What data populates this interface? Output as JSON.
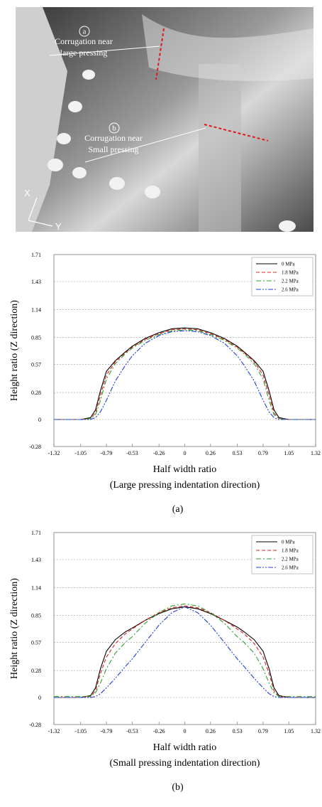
{
  "photo": {
    "labels": [
      {
        "mark": "a",
        "lines": [
          "Corrugation near",
          "large pressing"
        ]
      },
      {
        "mark": "b",
        "lines": [
          "Corrugation near",
          "Small pressing"
        ]
      }
    ],
    "axes": [
      "X",
      "Y"
    ]
  },
  "chart_data": [
    {
      "type": "line",
      "y_label": "Height ratio (Z direction)",
      "x_label": "Half width ratio",
      "note": "(Large pressing indentation direction)",
      "caption": "(a)",
      "xlim": [
        -1.32,
        1.32
      ],
      "xticks": [
        -1.32,
        -1.05,
        -0.79,
        -0.53,
        -0.26,
        0,
        0.26,
        0.53,
        0.79,
        1.05,
        1.32
      ],
      "ylim": [
        -0.28,
        1.71
      ],
      "yticks": [
        -0.28,
        0,
        0.28,
        0.57,
        0.85,
        1.14,
        1.43,
        1.71
      ],
      "grid": true,
      "legend": "top-right",
      "x": [
        -1.32,
        -1.05,
        -0.95,
        -0.9,
        -0.85,
        -0.79,
        -0.7,
        -0.6,
        -0.53,
        -0.4,
        -0.26,
        -0.13,
        0,
        0.13,
        0.26,
        0.4,
        0.53,
        0.6,
        0.7,
        0.79,
        0.85,
        0.9,
        0.95,
        1.05,
        1.32
      ],
      "series": [
        {
          "name": "0 MPa",
          "color": "#000000",
          "dash": "solid",
          "values": [
            0,
            0,
            0.02,
            0.1,
            0.3,
            0.5,
            0.61,
            0.7,
            0.76,
            0.84,
            0.9,
            0.94,
            0.95,
            0.94,
            0.9,
            0.84,
            0.76,
            0.7,
            0.61,
            0.5,
            0.3,
            0.1,
            0.02,
            0,
            0
          ]
        },
        {
          "name": "1.8 MPa",
          "color": "#e02020",
          "dash": "dashed",
          "values": [
            0,
            0,
            0.01,
            0.07,
            0.25,
            0.46,
            0.6,
            0.69,
            0.75,
            0.83,
            0.89,
            0.93,
            0.94,
            0.93,
            0.89,
            0.83,
            0.75,
            0.69,
            0.6,
            0.46,
            0.25,
            0.07,
            0.01,
            0,
            0
          ]
        },
        {
          "name": "2.2 MPa",
          "color": "#2ca02c",
          "dash": "dashdot",
          "values": [
            0,
            0,
            0.01,
            0.05,
            0.2,
            0.42,
            0.58,
            0.68,
            0.74,
            0.82,
            0.88,
            0.92,
            0.93,
            0.92,
            0.88,
            0.82,
            0.74,
            0.68,
            0.58,
            0.42,
            0.2,
            0.05,
            0.01,
            0,
            0
          ]
        },
        {
          "name": "2.6 MPa",
          "color": "#1f3fdf",
          "dash": "dashdotdot",
          "values": [
            0,
            0,
            0,
            0.02,
            0.08,
            0.2,
            0.4,
            0.56,
            0.66,
            0.79,
            0.87,
            0.91,
            0.92,
            0.91,
            0.87,
            0.79,
            0.66,
            0.56,
            0.4,
            0.2,
            0.08,
            0.02,
            0,
            0,
            0
          ]
        }
      ]
    },
    {
      "type": "line",
      "y_label": "Height ratio (Z direction)",
      "x_label": "Half width ratio",
      "note": "(Small pressing indentation direction)",
      "caption": "(b)",
      "xlim": [
        -1.32,
        1.32
      ],
      "xticks": [
        -1.32,
        -1.05,
        -0.79,
        -0.53,
        -0.26,
        0,
        0.26,
        0.53,
        0.79,
        1.05,
        1.32
      ],
      "ylim": [
        -0.28,
        1.71
      ],
      "yticks": [
        -0.28,
        0,
        0.28,
        0.57,
        0.85,
        1.14,
        1.43,
        1.71
      ],
      "grid": true,
      "legend": "top-right",
      "x": [
        -1.32,
        -1.05,
        -0.95,
        -0.9,
        -0.85,
        -0.79,
        -0.7,
        -0.6,
        -0.53,
        -0.4,
        -0.26,
        -0.13,
        0,
        0.13,
        0.26,
        0.4,
        0.53,
        0.6,
        0.7,
        0.79,
        0.85,
        0.9,
        0.95,
        1.05,
        1.32
      ],
      "series": [
        {
          "name": "0 MPa",
          "color": "#000000",
          "dash": "solid",
          "values": [
            0,
            0,
            0.02,
            0.1,
            0.3,
            0.48,
            0.6,
            0.68,
            0.72,
            0.8,
            0.87,
            0.92,
            0.94,
            0.92,
            0.87,
            0.8,
            0.73,
            0.68,
            0.6,
            0.48,
            0.3,
            0.1,
            0.02,
            0,
            0
          ]
        },
        {
          "name": "1.8 MPa",
          "color": "#e02020",
          "dash": "dashed",
          "values": [
            0,
            0,
            0.01,
            0.07,
            0.25,
            0.42,
            0.56,
            0.66,
            0.71,
            0.8,
            0.88,
            0.93,
            0.95,
            0.93,
            0.88,
            0.8,
            0.71,
            0.66,
            0.56,
            0.42,
            0.25,
            0.07,
            0.01,
            0,
            0
          ]
        },
        {
          "name": "2.2 MPa",
          "color": "#2ca02c",
          "dash": "dashdot",
          "values": [
            0.01,
            0.01,
            0.01,
            0.05,
            0.15,
            0.3,
            0.46,
            0.57,
            0.63,
            0.77,
            0.88,
            0.95,
            0.97,
            0.95,
            0.88,
            0.77,
            0.63,
            0.57,
            0.46,
            0.3,
            0.15,
            0.05,
            0.01,
            0.01,
            0.01
          ]
        },
        {
          "name": "2.6 MPa",
          "color": "#1f3fdf",
          "dash": "dashdotdot",
          "values": [
            0,
            0,
            0,
            0.01,
            0.04,
            0.1,
            0.2,
            0.32,
            0.4,
            0.57,
            0.75,
            0.88,
            0.94,
            0.88,
            0.75,
            0.57,
            0.4,
            0.32,
            0.2,
            0.1,
            0.04,
            0.01,
            0,
            0,
            0
          ]
        }
      ]
    }
  ]
}
